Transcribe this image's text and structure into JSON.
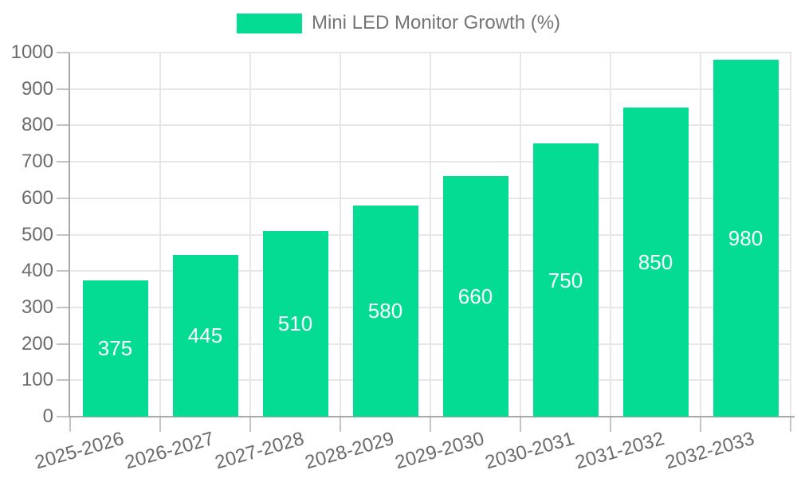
{
  "chart_data": {
    "type": "bar",
    "title": "",
    "categories": [
      "2025-2026",
      "2026-2027",
      "2027-2028",
      "2028-2029",
      "2029-2030",
      "2030-2031",
      "2031-2032",
      "2032-2033"
    ],
    "series": [
      {
        "name": "Mini LED Monitor Growth (%)",
        "values": [
          375,
          445,
          510,
          580,
          660,
          750,
          850,
          980
        ]
      }
    ],
    "ylim": [
      0,
      1000
    ],
    "ytick_step": 100,
    "yticks": [
      0,
      100,
      200,
      300,
      400,
      500,
      600,
      700,
      800,
      900,
      1000
    ],
    "x_label_rotation_deg": -16,
    "grid": true,
    "legend_position": "top-center",
    "value_labels_position": "inside-center",
    "colors": {
      "bar": "#05DC93",
      "value_label": "#FFFFFF",
      "axis_line": "#A9A9A9",
      "tick": "#C4C4C4",
      "gridline": "#E7E7E7",
      "tick_label": "#6B6B6B",
      "legend_text": "#757575",
      "background": "#FFFFFF"
    }
  }
}
